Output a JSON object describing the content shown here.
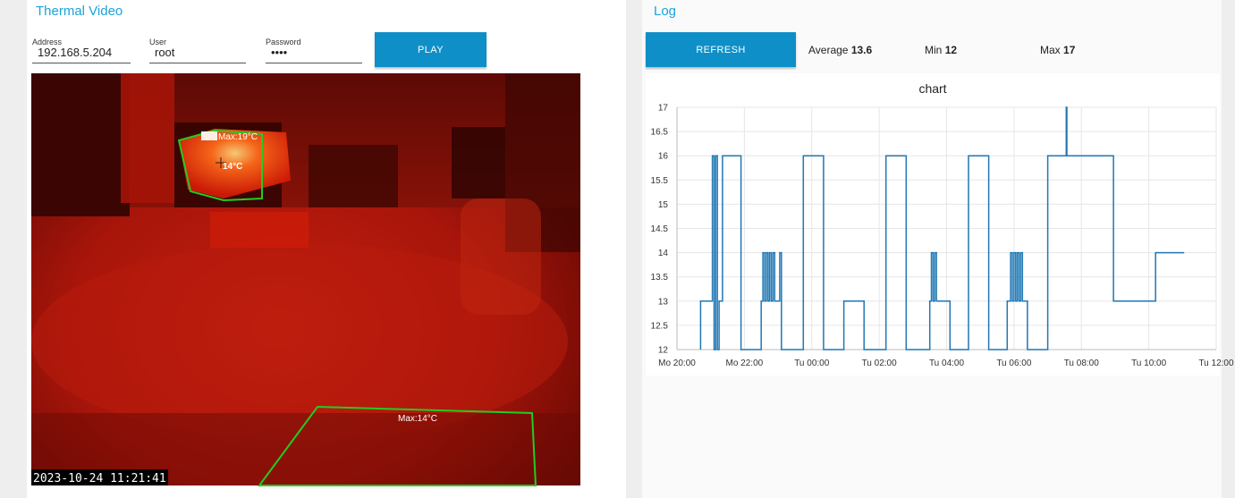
{
  "thermal": {
    "title": "Thermal Video",
    "address": {
      "label": "Address",
      "value": "192.168.5.204"
    },
    "user": {
      "label": "User",
      "value": "root"
    },
    "password": {
      "label": "Password",
      "value": "••••"
    },
    "play_label": "PLAY",
    "overlay": {
      "zone1_max": "Max:19°C",
      "spot": "14°C",
      "zone2_max": "Max:14°C",
      "timestamp": "2023-10-24 11:21:41"
    },
    "colors": {
      "zone_outline": "#22cc22",
      "accent": "#1aa3d9",
      "button": "#0e8fc7"
    }
  },
  "log": {
    "title": "Log",
    "refresh_label": "REFRESH",
    "average": {
      "label": "Average",
      "value": "13.6"
    },
    "min": {
      "label": "Min",
      "value": "12"
    },
    "max": {
      "label": "Max",
      "value": "17"
    }
  },
  "chart_data": {
    "type": "line",
    "title": "chart",
    "ylim": [
      12,
      17
    ],
    "yticks": [
      "17",
      "16.5",
      "16",
      "15.5",
      "15",
      "14.5",
      "14",
      "13.5",
      "13",
      "12.5",
      "12"
    ],
    "xticks": [
      "Mo 20:00",
      "Mo 22:00",
      "Tu 00:00",
      "Tu 02:00",
      "Tu 04:00",
      "Tu 06:00",
      "Tu 08:00",
      "Tu 10:00",
      "Tu 12:00"
    ],
    "x_unit": "hours since Mo 20:00",
    "xlim": [
      0,
      16
    ],
    "grid": true,
    "line_color": "#1f77b4",
    "series": [
      {
        "values": [
          [
            0.7,
            12
          ],
          [
            0.7,
            13
          ],
          [
            1.05,
            13
          ],
          [
            1.05,
            16
          ],
          [
            1.1,
            16
          ],
          [
            1.1,
            12
          ],
          [
            1.15,
            12
          ],
          [
            1.15,
            16
          ],
          [
            1.2,
            16
          ],
          [
            1.2,
            12
          ],
          [
            1.25,
            12
          ],
          [
            1.25,
            13
          ],
          [
            1.35,
            13
          ],
          [
            1.35,
            16
          ],
          [
            1.9,
            16
          ],
          [
            1.9,
            12
          ],
          [
            2.5,
            12
          ],
          [
            2.5,
            13
          ],
          [
            2.55,
            13
          ],
          [
            2.55,
            14
          ],
          [
            2.6,
            14
          ],
          [
            2.6,
            13
          ],
          [
            2.65,
            13
          ],
          [
            2.65,
            14
          ],
          [
            2.7,
            14
          ],
          [
            2.7,
            13
          ],
          [
            2.75,
            13
          ],
          [
            2.75,
            14
          ],
          [
            2.8,
            14
          ],
          [
            2.8,
            13
          ],
          [
            2.85,
            13
          ],
          [
            2.85,
            14
          ],
          [
            2.9,
            14
          ],
          [
            2.9,
            13
          ],
          [
            3.05,
            13
          ],
          [
            3.05,
            14
          ],
          [
            3.1,
            14
          ],
          [
            3.1,
            12
          ],
          [
            3.75,
            12
          ],
          [
            3.75,
            16
          ],
          [
            4.35,
            16
          ],
          [
            4.35,
            12
          ],
          [
            4.95,
            12
          ],
          [
            4.95,
            13
          ],
          [
            5.55,
            13
          ],
          [
            5.55,
            12
          ],
          [
            6.2,
            12
          ],
          [
            6.2,
            16
          ],
          [
            6.8,
            16
          ],
          [
            6.8,
            12
          ],
          [
            7.5,
            12
          ],
          [
            7.5,
            13
          ],
          [
            7.55,
            13
          ],
          [
            7.55,
            14
          ],
          [
            7.6,
            14
          ],
          [
            7.6,
            13
          ],
          [
            7.65,
            13
          ],
          [
            7.65,
            14
          ],
          [
            7.7,
            14
          ],
          [
            7.7,
            13
          ],
          [
            8.1,
            13
          ],
          [
            8.1,
            12
          ],
          [
            8.65,
            12
          ],
          [
            8.65,
            16
          ],
          [
            9.25,
            16
          ],
          [
            9.25,
            12
          ],
          [
            9.8,
            12
          ],
          [
            9.8,
            13
          ],
          [
            9.9,
            13
          ],
          [
            9.9,
            14
          ],
          [
            9.95,
            14
          ],
          [
            9.95,
            13
          ],
          [
            10.0,
            13
          ],
          [
            10.0,
            14
          ],
          [
            10.05,
            14
          ],
          [
            10.05,
            13
          ],
          [
            10.1,
            13
          ],
          [
            10.1,
            14
          ],
          [
            10.15,
            14
          ],
          [
            10.15,
            13
          ],
          [
            10.2,
            13
          ],
          [
            10.2,
            14
          ],
          [
            10.25,
            14
          ],
          [
            10.25,
            13
          ],
          [
            10.4,
            13
          ],
          [
            10.4,
            12
          ],
          [
            11.0,
            12
          ],
          [
            11.0,
            16
          ],
          [
            11.55,
            16
          ],
          [
            11.55,
            17
          ],
          [
            11.57,
            17
          ],
          [
            11.57,
            16
          ],
          [
            12.95,
            16
          ],
          [
            12.95,
            13
          ],
          [
            14.2,
            13
          ],
          [
            14.2,
            14
          ],
          [
            15.05,
            14
          ]
        ]
      }
    ]
  }
}
